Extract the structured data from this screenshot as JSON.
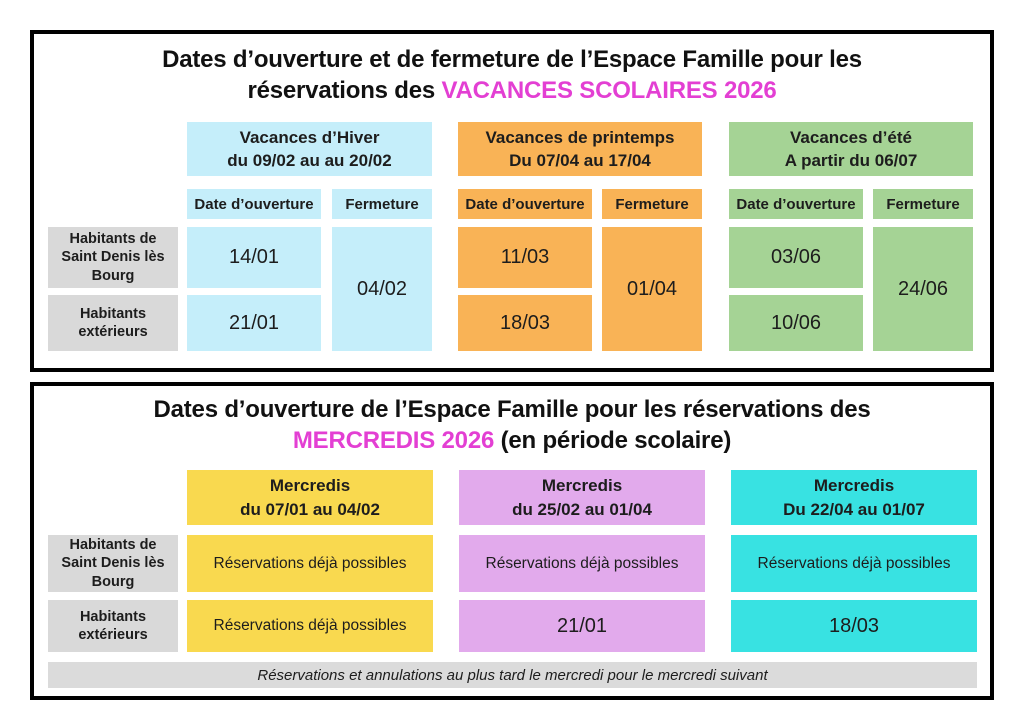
{
  "colors": {
    "highlight": "#E33FD3",
    "label_bg": "#D9D9D9",
    "footer_bg": "#DBDBDB"
  },
  "vacations_panel": {
    "title": {
      "line1": "Dates d’ouverture et de fermeture de l’Espace Famille pour les",
      "line2_pre": "réservations des ",
      "line2_highlight": "VACANCES SCOLAIRES 2026",
      "line2_post": ""
    },
    "column_headers": {
      "open": "Date d’ouverture",
      "close": "Fermeture"
    },
    "row_labels": [
      "Habitants de Saint Denis lès Bourg",
      "Habitants extérieurs"
    ],
    "groups": [
      {
        "name": "Vacances d’Hiver",
        "period": "du 09/02 au au 20/02",
        "color": "#C5EEFA",
        "open_dates": [
          "14/01",
          "21/01"
        ],
        "close_date": "04/02"
      },
      {
        "name": "Vacances de printemps",
        "period": "Du 07/04 au 17/04",
        "color": "#F9B356",
        "open_dates": [
          "11/03",
          "18/03"
        ],
        "close_date": "01/04"
      },
      {
        "name": "Vacances d’été",
        "period": "A partir du 06/07",
        "color": "#A5D395",
        "open_dates": [
          "03/06",
          "10/06"
        ],
        "close_date": "24/06"
      }
    ]
  },
  "wednesdays_panel": {
    "title": {
      "line1": "Dates d’ouverture de l’Espace Famille pour les réservations des",
      "line2_pre": "",
      "line2_highlight": "MERCREDIS 2026",
      "line2_post": " (en période scolaire)"
    },
    "row_labels": [
      "Habitants de Saint Denis lès Bourg",
      "Habitants extérieurs"
    ],
    "groups": [
      {
        "name": "Mercredis",
        "period": "du 07/01 au 04/02",
        "color": "#F9D94F",
        "cells": [
          "Réservations déjà possibles",
          "Réservations déjà possibles"
        ]
      },
      {
        "name": "Mercredis",
        "period": "du 25/02 au 01/04",
        "color": "#E2AAEC",
        "cells": [
          "Réservations déjà possibles",
          "21/01"
        ]
      },
      {
        "name": "Mercredis",
        "period": "Du 22/04 au 01/07",
        "color": "#38E2E2",
        "cells": [
          "Réservations déjà possibles",
          "18/03"
        ]
      }
    ],
    "footer_note": "Réservations et annulations au plus tard le mercredi pour le mercredi suivant"
  }
}
